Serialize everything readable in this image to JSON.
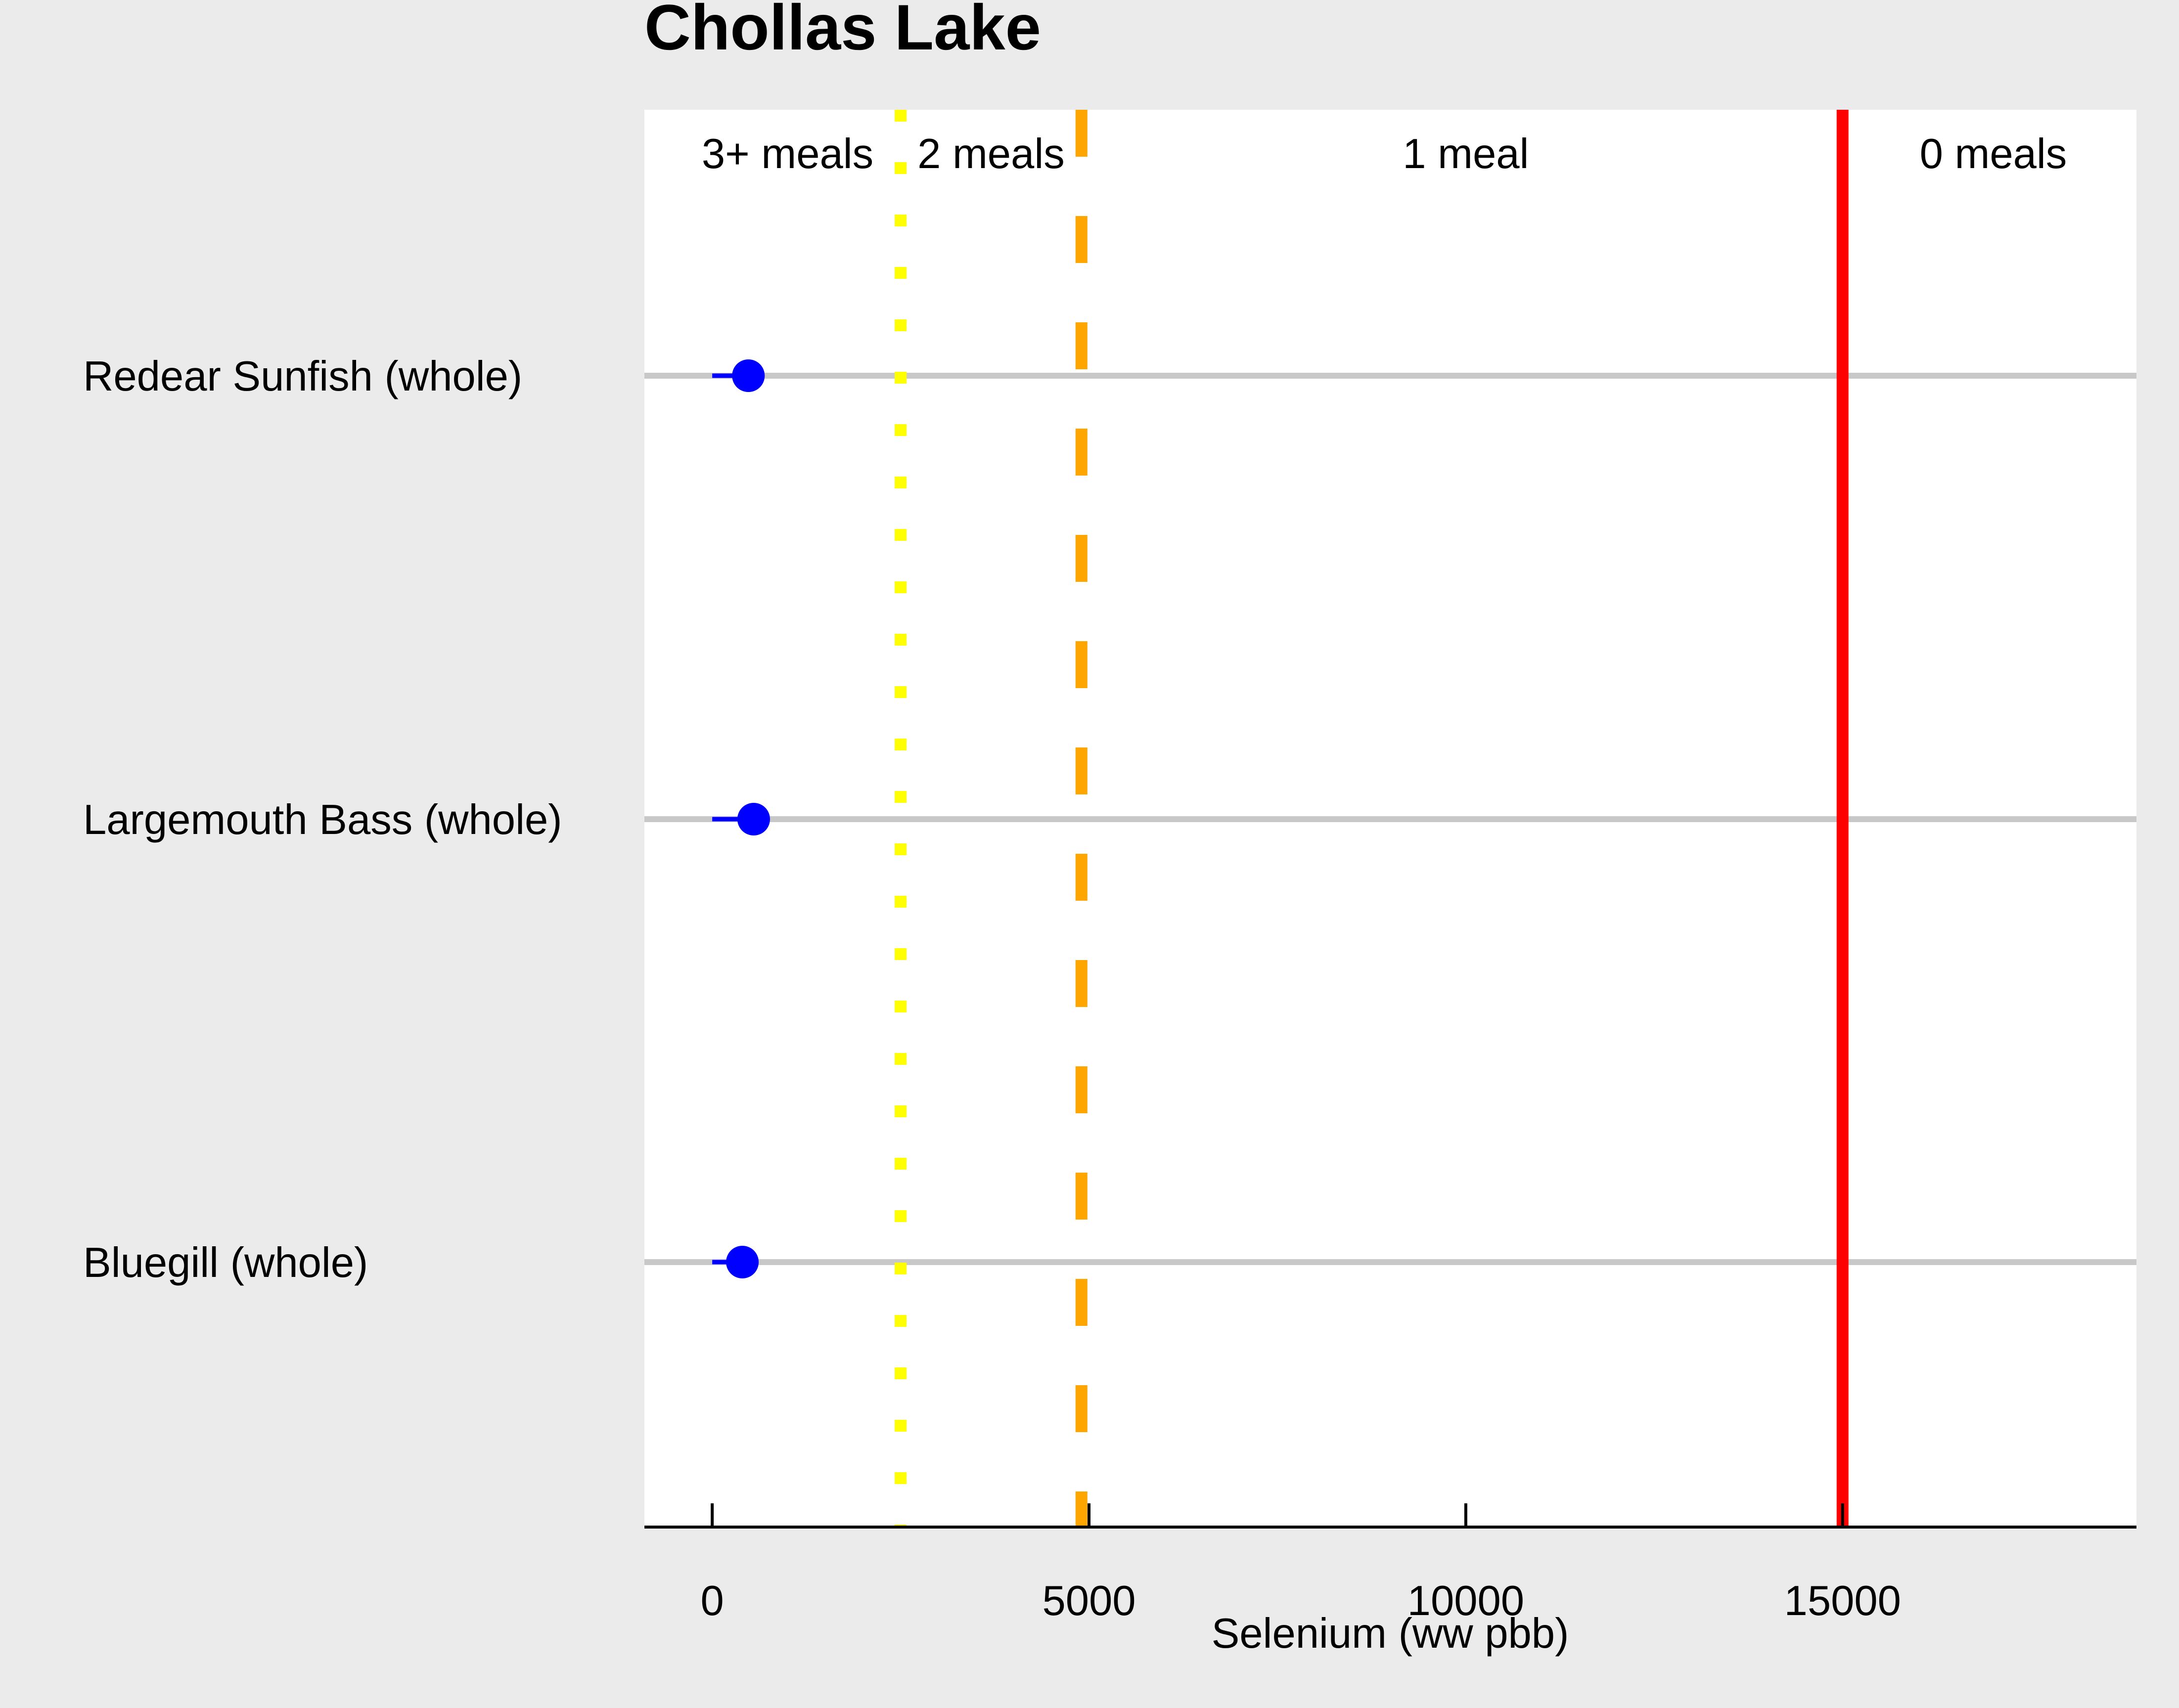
{
  "chart_data": {
    "type": "scatter",
    "title": "Chollas Lake",
    "xlabel": "Selenium (ww pbb)",
    "ylabel": "",
    "xlim": [
      -900,
      18900
    ],
    "xticks": [
      0,
      5000,
      10000,
      15000
    ],
    "xtick_labels": [
      "0",
      "5000",
      "10000",
      "15000"
    ],
    "grid": true,
    "categories": [
      "Redear Sunfish (whole)",
      "Largemouth Bass (whole)",
      "Bluegill (whole)"
    ],
    "points": [
      {
        "label": "Redear Sunfish (whole)",
        "range": [
          0,
          480
        ],
        "value": 480
      },
      {
        "label": "Largemouth Bass (whole)",
        "range": [
          0,
          550
        ],
        "value": 550
      },
      {
        "label": "Bluegill (whole)",
        "range": [
          0,
          400
        ],
        "value": 400
      }
    ],
    "thresholds": [
      {
        "value": 2500,
        "style": "dotted",
        "color": "#ffff00"
      },
      {
        "value": 4900,
        "style": "dashed",
        "color": "#ffa500"
      },
      {
        "value": 15000,
        "style": "solid",
        "color": "#ff0000"
      }
    ],
    "zones": [
      {
        "label": "3+ meals",
        "center": 1000
      },
      {
        "label": "2 meals",
        "center": 3700
      },
      {
        "label": "1 meal",
        "center": 10000
      },
      {
        "label": "0 meals",
        "center": 17000
      }
    ],
    "colors": {
      "point": "#0000ff",
      "gridline": "#c8c8c8",
      "panel": "#ffffff",
      "background": "#ebebeb"
    }
  }
}
